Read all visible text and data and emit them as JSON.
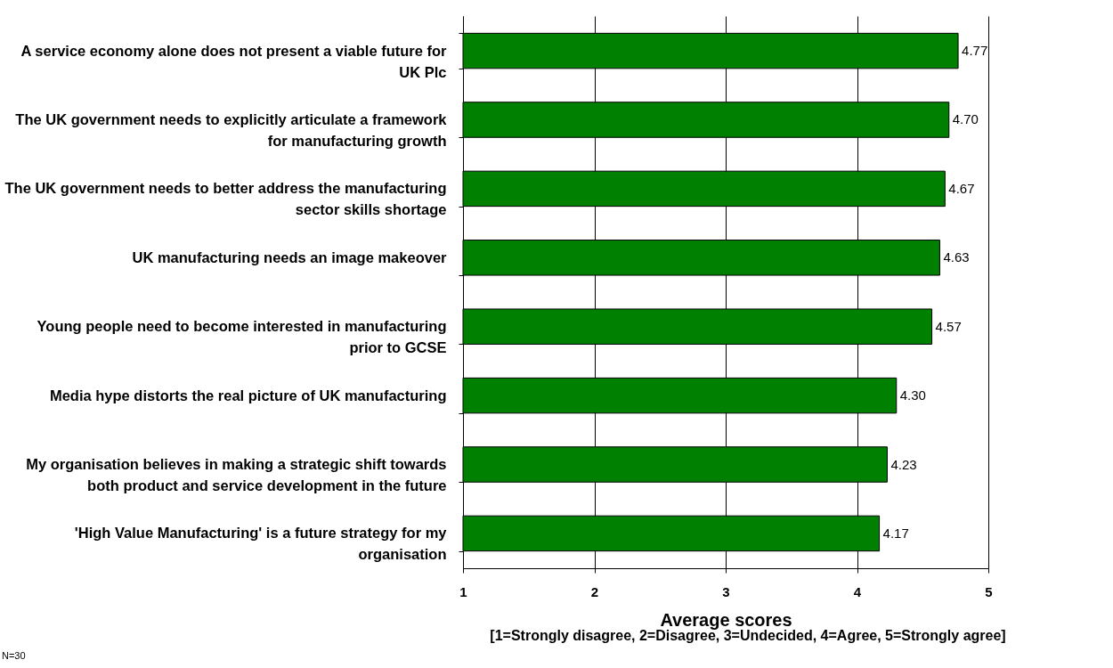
{
  "chart_data": {
    "type": "bar",
    "orientation": "horizontal",
    "categories": [
      "A service economy alone does not present a viable future for UK Plc",
      "The UK government needs to explicitly articulate a framework for manufacturing growth",
      "The UK government needs to better address the manufacturing sector skills shortage",
      "UK manufacturing needs an image makeover",
      "Young people need to become interested in manufacturing prior to GCSE",
      "Media hype distorts the real picture of UK manufacturing",
      "My organisation believes in making a strategic shift towards both product and service development in the future",
      "'High Value Manufacturing' is a future strategy for my organisation"
    ],
    "values": [
      4.77,
      4.7,
      4.67,
      4.63,
      4.57,
      4.3,
      4.23,
      4.17
    ],
    "value_labels": [
      "4.77",
      "4.70",
      "4.67",
      "4.63",
      "4.57",
      "4.30",
      "4.23",
      "4.17"
    ],
    "color": "#008000",
    "xlim": [
      1,
      5
    ],
    "xticks": [
      1,
      2,
      3,
      4,
      5
    ],
    "grid": "x",
    "xlabel": "Average scores",
    "annotations": [
      "[1=Strongly disagree, 2=Disagree, 3=Undecided, 4=Agree, 5=Strongly agree]",
      "N=30"
    ]
  }
}
